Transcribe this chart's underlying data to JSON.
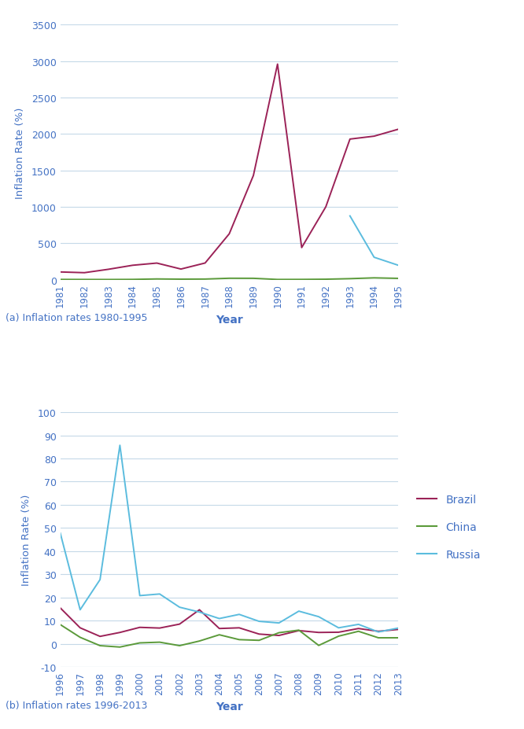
{
  "chart_a": {
    "title": "(a) Inflation rates 1980-1995",
    "xlabel": "Year",
    "ylabel": "Inflation Rate (%)",
    "ylim": [
      0,
      3500
    ],
    "yticks": [
      0,
      500,
      1000,
      1500,
      2000,
      2500,
      3000,
      3500
    ],
    "years": [
      1981,
      1982,
      1983,
      1984,
      1985,
      1986,
      1987,
      1988,
      1989,
      1990,
      1991,
      1992,
      1993,
      1994,
      1995
    ],
    "brazil": [
      105,
      95,
      142,
      197,
      227,
      145,
      228,
      629,
      1430,
      2960,
      440,
      1000,
      1930,
      1970,
      2065
    ],
    "china": [
      2.5,
      2,
      1.5,
      2.8,
      9,
      6,
      7.5,
      18.5,
      17.8,
      2.1,
      2.9,
      5.4,
      13,
      24,
      17
    ],
    "russia": [
      null,
      null,
      null,
      null,
      null,
      null,
      null,
      null,
      null,
      null,
      null,
      null,
      875,
      307,
      197
    ],
    "brazil_color": "#9b2257",
    "china_color": "#5b9a3a",
    "russia_color": "#5bbcde"
  },
  "chart_b": {
    "title": "(b) Inflation rates 1996-2013",
    "xlabel": "Year",
    "ylabel": "Inflation Rate (%)",
    "ylim": [
      -10,
      100
    ],
    "yticks": [
      -10,
      0,
      10,
      20,
      30,
      40,
      50,
      60,
      70,
      80,
      90,
      100
    ],
    "years": [
      1996,
      1997,
      1998,
      1999,
      2000,
      2001,
      2002,
      2003,
      2004,
      2005,
      2006,
      2007,
      2008,
      2009,
      2010,
      2011,
      2012,
      2013
    ],
    "brazil": [
      15.5,
      6.9,
      3.2,
      4.9,
      7.1,
      6.8,
      8.5,
      14.7,
      6.6,
      6.9,
      4.2,
      3.6,
      5.7,
      4.9,
      5.0,
      6.6,
      5.4,
      6.2
    ],
    "china": [
      8.3,
      2.8,
      -0.8,
      -1.4,
      0.4,
      0.7,
      -0.8,
      1.2,
      3.9,
      1.8,
      1.5,
      4.8,
      5.9,
      -0.7,
      3.3,
      5.4,
      2.6,
      2.6
    ],
    "russia": [
      47.8,
      14.7,
      27.7,
      85.7,
      20.8,
      21.5,
      15.8,
      13.7,
      10.9,
      12.7,
      9.7,
      9.0,
      14.1,
      11.7,
      6.9,
      8.4,
      5.1,
      6.8
    ],
    "brazil_color": "#9b2257",
    "china_color": "#5b9a3a",
    "russia_color": "#5bbcde"
  },
  "legend_labels": [
    "Brazil",
    "China",
    "Russia"
  ],
  "text_color": "#4472c4",
  "bg_color": "#ffffff",
  "grid_color": "#c5d9e8"
}
